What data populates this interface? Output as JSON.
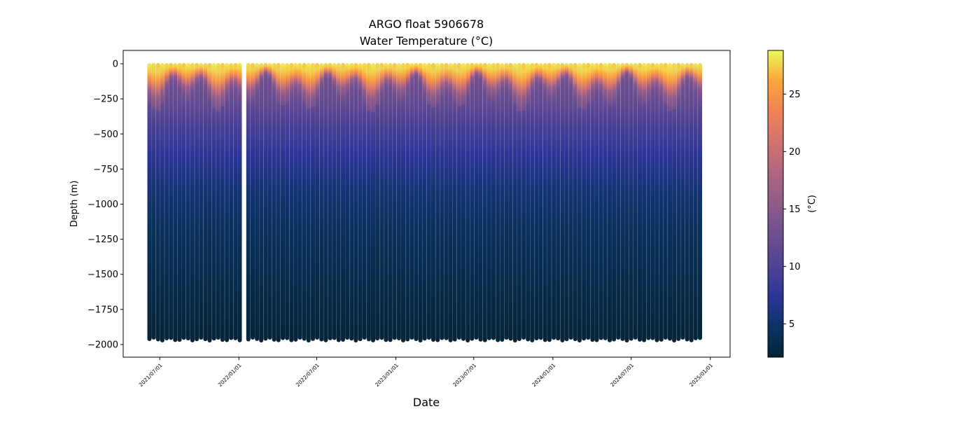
{
  "chart_data": {
    "type": "scatter",
    "title_line1": "ARGO float 5906678",
    "title_line2": "Water Temperature (°C)",
    "xlabel": "Date",
    "ylabel": "Depth (m)",
    "colorbar_label": "(°C)",
    "colormap": "thermal",
    "colormap_colors": [
      "#042333",
      "#0b3366",
      "#2d3598",
      "#4f4393",
      "#6f4f8f",
      "#8e5a8a",
      "#b06680",
      "#d2716f",
      "#ef8356",
      "#fba43b",
      "#e8fa5b"
    ],
    "clim": [
      2.1,
      28.8
    ],
    "colorbar_ticks": [
      5,
      10,
      15,
      20,
      25
    ],
    "xlim": [
      "2021-04-07",
      "2025-02-16"
    ],
    "ylim": [
      -2090,
      95
    ],
    "x_ticks": [
      "2021/07/01",
      "2022/01/01",
      "2022/07/01",
      "2023/01/01",
      "2023/07/01",
      "2024/01/01",
      "2024/07/01",
      "2025/01/01"
    ],
    "y_ticks": [
      0,
      -250,
      -500,
      -750,
      -1000,
      -1250,
      -1500,
      -1750,
      -2000
    ],
    "grid": false,
    "profile_max_depth_m": -1975,
    "representative_profile": {
      "depth_m": [
        0,
        -40,
        -80,
        -120,
        -160,
        -220,
        -300,
        -450,
        -650,
        -900,
        -1200,
        -1600,
        -2000
      ],
      "temperature_c": [
        28.5,
        27.5,
        25.5,
        21,
        16,
        13,
        11.5,
        9.5,
        7.5,
        5.5,
        4.2,
        3.2,
        2.4
      ]
    },
    "profile_dates": [
      "2021-06-07",
      "2021-06-17",
      "2021-06-27",
      "2021-07-07",
      "2021-07-17",
      "2021-07-27",
      "2021-08-06",
      "2021-08-16",
      "2021-08-26",
      "2021-09-05",
      "2021-09-15",
      "2021-09-25",
      "2021-10-05",
      "2021-10-15",
      "2021-10-25",
      "2021-11-04",
      "2021-11-14",
      "2021-11-24",
      "2021-12-04",
      "2021-12-14",
      "2021-12-24",
      "2022-01-03",
      "2022-01-23",
      "2022-02-02",
      "2022-02-12",
      "2022-02-22",
      "2022-03-04",
      "2022-03-14",
      "2022-03-24",
      "2022-04-03",
      "2022-04-13",
      "2022-04-23",
      "2022-05-03",
      "2022-05-13",
      "2022-05-23",
      "2022-06-02",
      "2022-06-12",
      "2022-06-22",
      "2022-07-02",
      "2022-07-12",
      "2022-07-22",
      "2022-08-01",
      "2022-08-11",
      "2022-08-21",
      "2022-08-31",
      "2022-09-10",
      "2022-09-20",
      "2022-09-30",
      "2022-10-10",
      "2022-10-20",
      "2022-10-30",
      "2022-11-09",
      "2022-11-19",
      "2022-11-29",
      "2022-12-09",
      "2022-12-19",
      "2022-12-29",
      "2023-01-08",
      "2023-01-18",
      "2023-01-28",
      "2023-02-07",
      "2023-02-17",
      "2023-02-27",
      "2023-03-09",
      "2023-03-19",
      "2023-03-29",
      "2023-04-08",
      "2023-04-18",
      "2023-04-28",
      "2023-05-08",
      "2023-05-18",
      "2023-05-28",
      "2023-06-07",
      "2023-06-17",
      "2023-06-27",
      "2023-07-07",
      "2023-07-17",
      "2023-07-27",
      "2023-08-06",
      "2023-08-16",
      "2023-08-26",
      "2023-09-05",
      "2023-09-15",
      "2023-09-25",
      "2023-10-05",
      "2023-10-15",
      "2023-10-25",
      "2023-11-04",
      "2023-11-14",
      "2023-11-24",
      "2023-12-04",
      "2023-12-14",
      "2023-12-24",
      "2024-01-03",
      "2024-01-13",
      "2024-01-23",
      "2024-02-02",
      "2024-02-12",
      "2024-02-22",
      "2024-03-03",
      "2024-03-13",
      "2024-03-23",
      "2024-04-02",
      "2024-04-12",
      "2024-04-22",
      "2024-05-02",
      "2024-05-12",
      "2024-05-22",
      "2024-06-01",
      "2024-06-11",
      "2024-06-21",
      "2024-07-01",
      "2024-07-11",
      "2024-07-21",
      "2024-07-31",
      "2024-08-10",
      "2024-08-20",
      "2024-08-30",
      "2024-09-09",
      "2024-09-19",
      "2024-09-29",
      "2024-10-09",
      "2024-10-19",
      "2024-10-29",
      "2024-11-08",
      "2024-11-18",
      "2024-11-28",
      "2024-12-08"
    ]
  }
}
